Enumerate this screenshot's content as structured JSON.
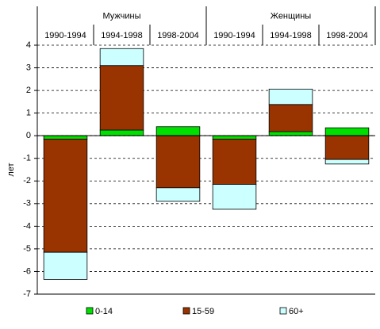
{
  "chart_data": {
    "type": "stacked-bar",
    "groups": [
      "Мужчины",
      "Женщины"
    ],
    "categories": [
      "1990-1994",
      "1994-1998",
      "1998-2004",
      "1990-1994",
      "1994-1998",
      "1998-2004"
    ],
    "y_label": "лет",
    "series": [
      {
        "name": "0-14",
        "color": "#00e000",
        "values": [
          -0.15,
          0.25,
          0.4,
          -0.15,
          0.18,
          0.35
        ]
      },
      {
        "name": "15-59",
        "color": "#993300",
        "values": [
          -5.0,
          2.85,
          -2.3,
          -2.0,
          1.2,
          -1.05
        ]
      },
      {
        "name": "60+",
        "color": "#ccffff",
        "values": [
          -1.2,
          0.75,
          -0.6,
          -1.1,
          0.68,
          -0.2
        ]
      }
    ],
    "ylim": [
      -7,
      4
    ],
    "yticks": [
      4,
      3,
      2,
      1,
      0,
      -1,
      -2,
      -3,
      -4,
      -5,
      -6,
      -7
    ],
    "grid": true
  }
}
